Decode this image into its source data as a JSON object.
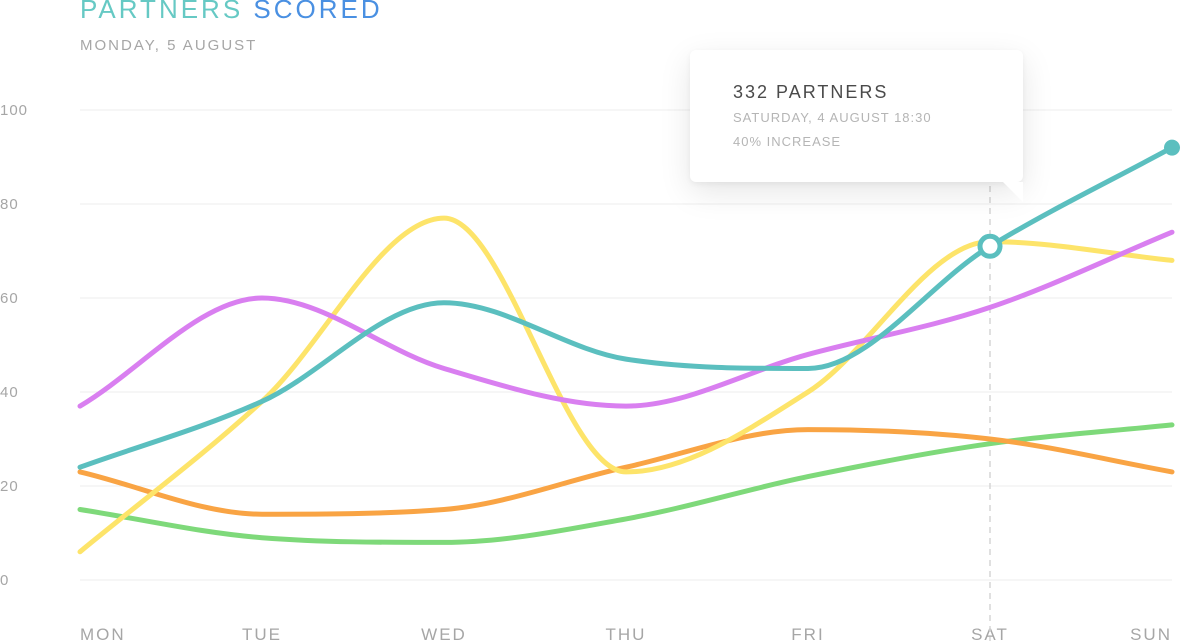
{
  "header": {
    "title_part1": "PARTNERS",
    "title_part2": "SCORED",
    "subtitle": "MONDAY, 5 AUGUST"
  },
  "tooltip": {
    "headline": "332 PARTNERS",
    "date": "SATURDAY, 4 AUGUST 18:30",
    "change": "40% INCREASE"
  },
  "colors": {
    "teal": "#5bbfbf",
    "purple": "#d97ff0",
    "yellow": "#fde46a",
    "orange": "#f9a444",
    "green": "#7ed97a",
    "grid": "#eeeeee",
    "axis_text": "#a6a6a6"
  },
  "chart_data": {
    "type": "line",
    "categories": [
      "MON",
      "TUE",
      "WED",
      "THU",
      "FRI",
      "SAT",
      "SUN"
    ],
    "y_ticks": [
      "0",
      "20",
      "40",
      "60",
      "80",
      "100"
    ],
    "ylim": [
      0,
      100
    ],
    "grid": true,
    "smooth": true,
    "highlight": {
      "series": 0,
      "category": "SAT",
      "value": 71
    },
    "end_marker": {
      "series": 0,
      "category": "SUN",
      "value": 92
    },
    "series": [
      {
        "color": "#5bbfbf",
        "values": [
          24,
          38,
          59,
          47,
          45,
          71,
          92
        ]
      },
      {
        "color": "#d97ff0",
        "values": [
          37,
          60,
          45,
          37,
          48,
          58,
          74
        ]
      },
      {
        "color": "#fde46a",
        "values": [
          6,
          38,
          77,
          23,
          40,
          72,
          68
        ]
      },
      {
        "color": "#f9a444",
        "values": [
          23,
          14,
          15,
          24,
          32,
          30,
          23
        ]
      },
      {
        "color": "#7ed97a",
        "values": [
          15,
          9,
          8,
          13,
          22,
          29,
          33
        ]
      }
    ]
  }
}
